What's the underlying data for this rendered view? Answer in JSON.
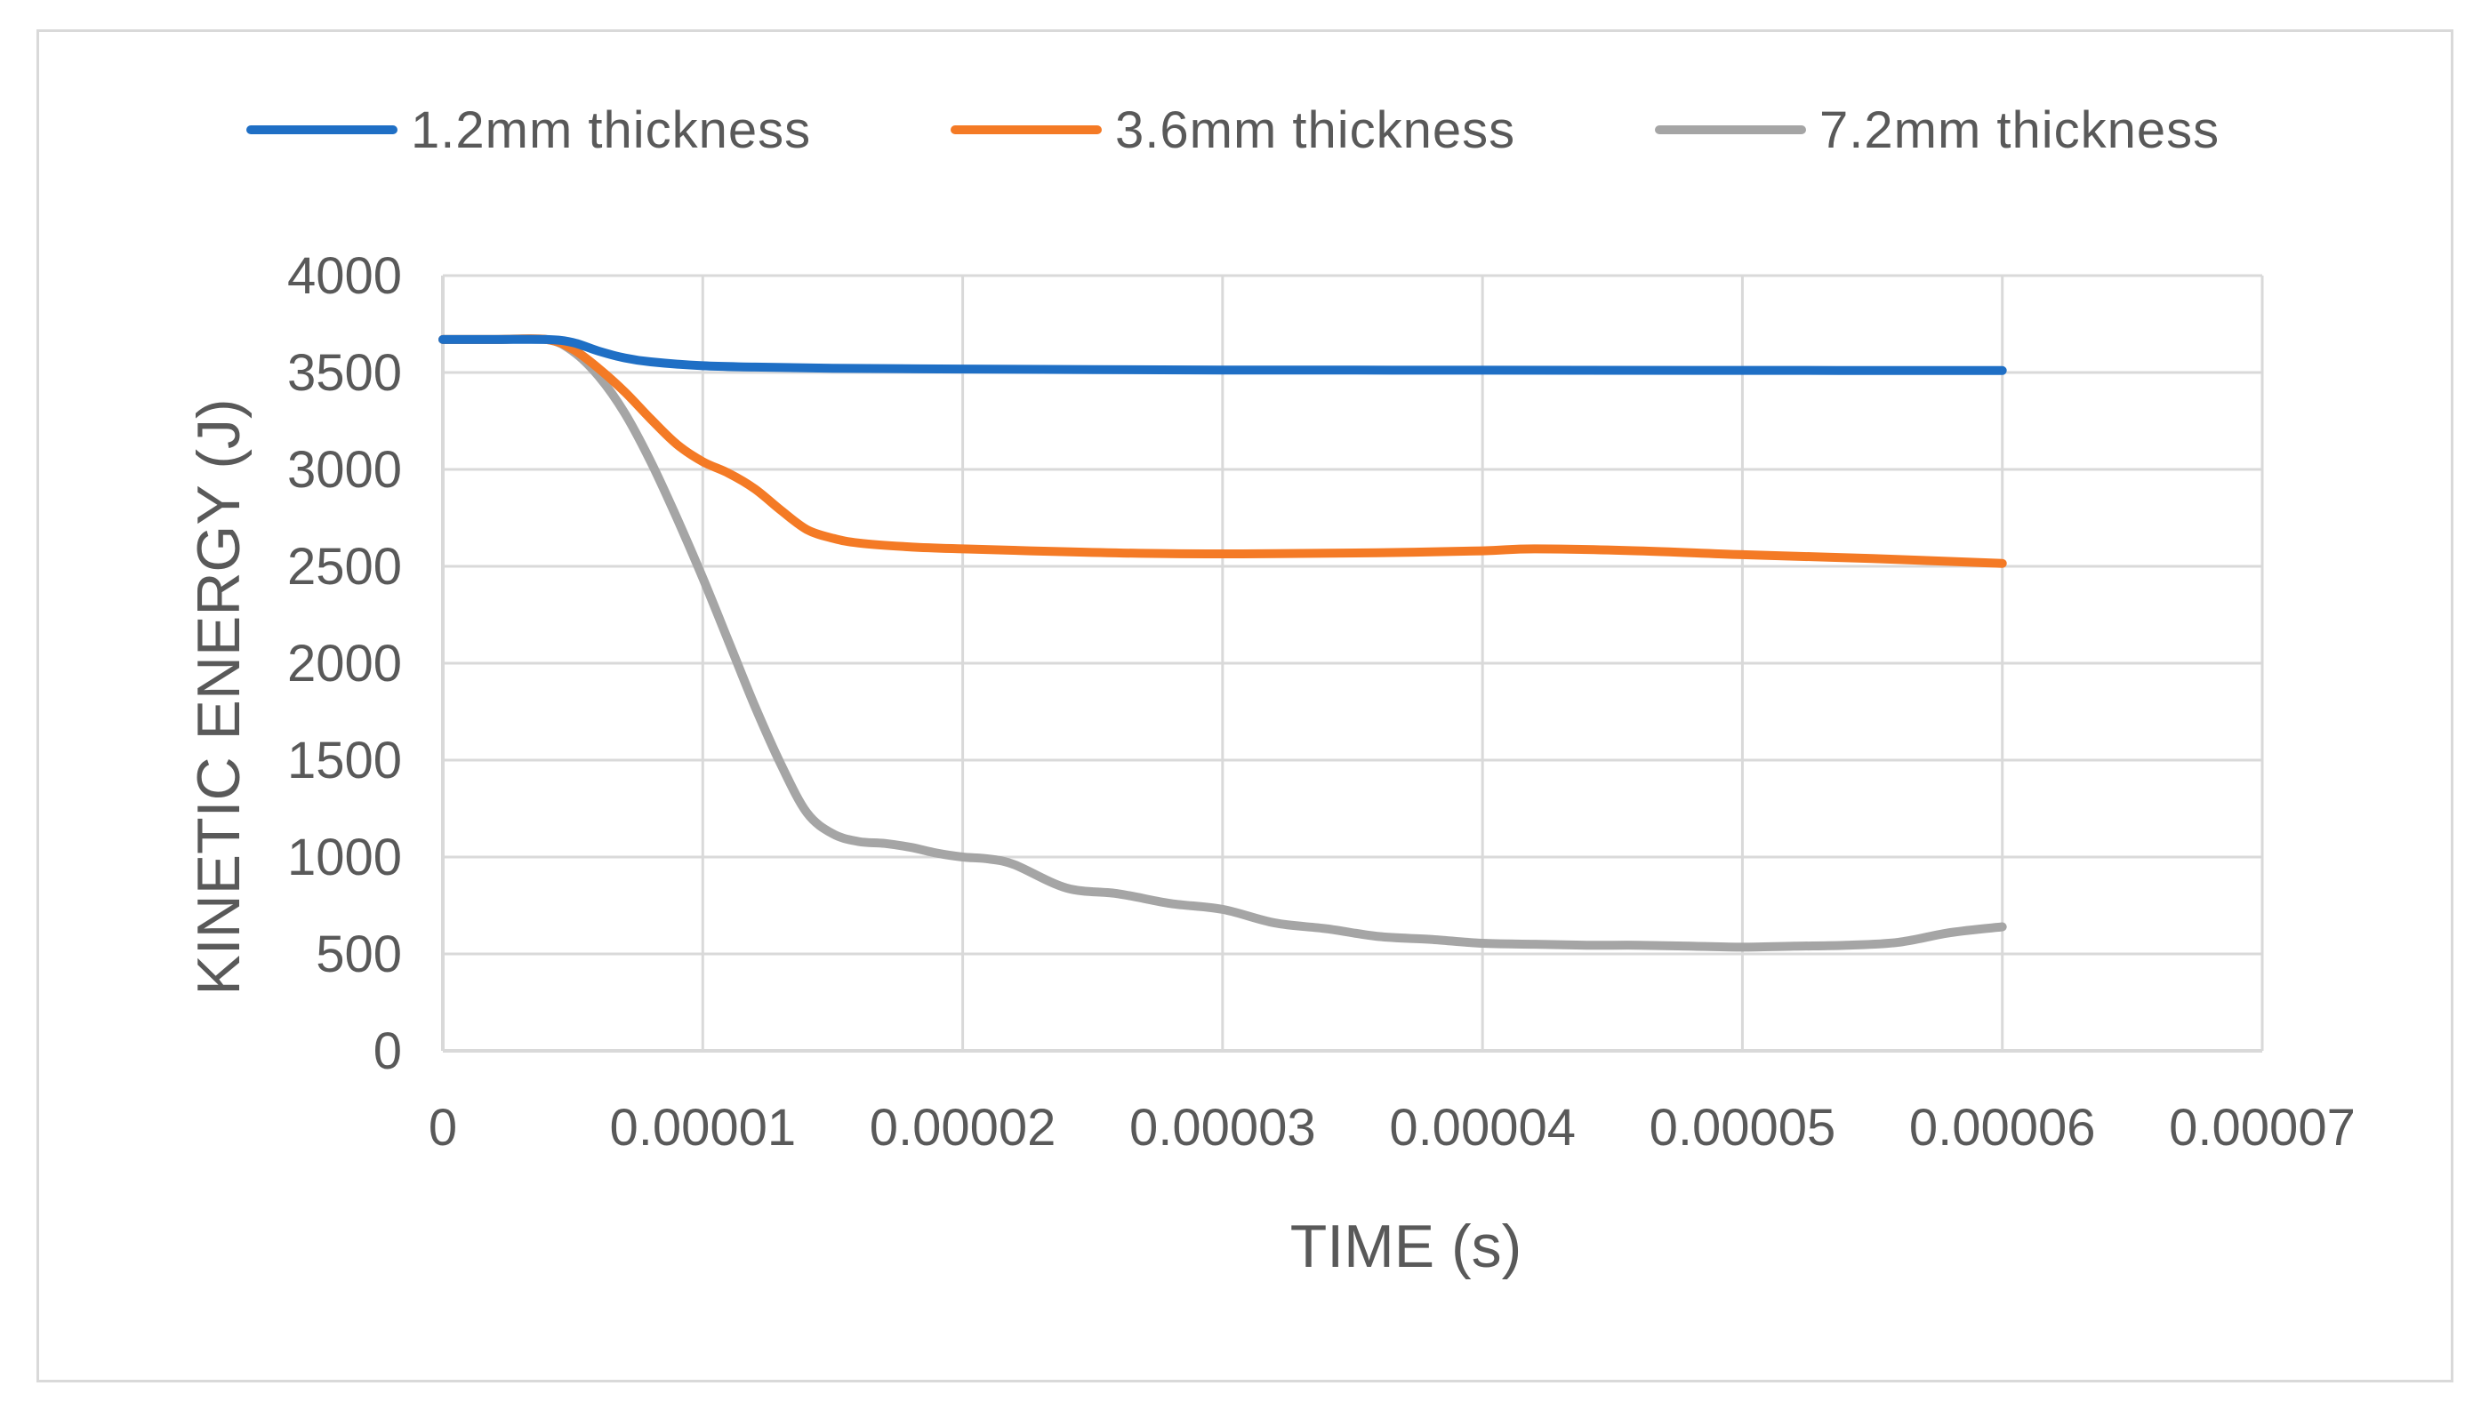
{
  "chart_data": {
    "type": "line",
    "title": "",
    "xlabel": "TIME (s)",
    "ylabel": "KINETIC ENERGY (J)",
    "xlim": [
      0,
      7e-05
    ],
    "ylim": [
      0,
      4000
    ],
    "x_ticks": [
      "0",
      "0.00001",
      "0.00002",
      "0.00003",
      "0.00004",
      "0.00005",
      "0.00006",
      "0.00007"
    ],
    "y_ticks": [
      "0",
      "500",
      "1000",
      "1500",
      "2000",
      "2500",
      "3000",
      "3500",
      "4000"
    ],
    "grid": true,
    "legend_position": "top",
    "series": [
      {
        "name": "1.2mm thickness",
        "color": "#1f6fc5",
        "x": [
          0,
          2e-06,
          4e-06,
          5e-06,
          6e-06,
          7e-06,
          8e-06,
          1e-05,
          1.2e-05,
          1.5e-05,
          2e-05,
          2.5e-05,
          3e-05,
          4e-05,
          5e-05,
          6e-05
        ],
        "y": [
          3670,
          3670,
          3670,
          3655,
          3610,
          3575,
          3555,
          3535,
          3528,
          3522,
          3518,
          3515,
          3513,
          3512,
          3511,
          3510
        ]
      },
      {
        "name": "3.6mm thickness",
        "color": "#f47a25",
        "x": [
          0,
          2e-06,
          4e-06,
          5e-06,
          6e-06,
          7e-06,
          8e-06,
          9e-06,
          1e-05,
          1.1e-05,
          1.2e-05,
          1.3e-05,
          1.4e-05,
          1.5e-05,
          1.6e-05,
          1.8e-05,
          2e-05,
          2.4e-05,
          2.8e-05,
          3.2e-05,
          3.6e-05,
          4e-05,
          4.2e-05,
          4.6e-05,
          5e-05,
          5.5e-05,
          6e-05
        ],
        "y": [
          3670,
          3670,
          3670,
          3620,
          3520,
          3400,
          3260,
          3130,
          3040,
          2980,
          2900,
          2790,
          2690,
          2645,
          2620,
          2600,
          2590,
          2575,
          2565,
          2565,
          2570,
          2580,
          2590,
          2580,
          2560,
          2540,
          2515
        ]
      },
      {
        "name": "7.2mm thickness",
        "color": "#a5a5a5",
        "x": [
          0,
          2e-06,
          4e-06,
          5e-06,
          6e-06,
          7e-06,
          8e-06,
          9e-06,
          1e-05,
          1.1e-05,
          1.2e-05,
          1.3e-05,
          1.4e-05,
          1.5e-05,
          1.6e-05,
          1.7e-05,
          1.8e-05,
          1.9e-05,
          2e-05,
          2.1e-05,
          2.2e-05,
          2.4e-05,
          2.6e-05,
          2.8e-05,
          3e-05,
          3.2e-05,
          3.4e-05,
          3.6e-05,
          3.8e-05,
          4e-05,
          4.2e-05,
          4.4e-05,
          4.6e-05,
          4.8e-05,
          5e-05,
          5.2e-05,
          5.4e-05,
          5.6e-05,
          5.8e-05,
          6e-05
        ],
        "y": [
          3670,
          3670,
          3670,
          3610,
          3480,
          3290,
          3040,
          2750,
          2440,
          2110,
          1780,
          1480,
          1230,
          1120,
          1080,
          1070,
          1050,
          1020,
          1000,
          990,
          960,
          840,
          810,
          760,
          730,
          660,
          630,
          590,
          575,
          555,
          550,
          545,
          545,
          540,
          535,
          540,
          545,
          560,
          610,
          640
        ]
      }
    ]
  }
}
